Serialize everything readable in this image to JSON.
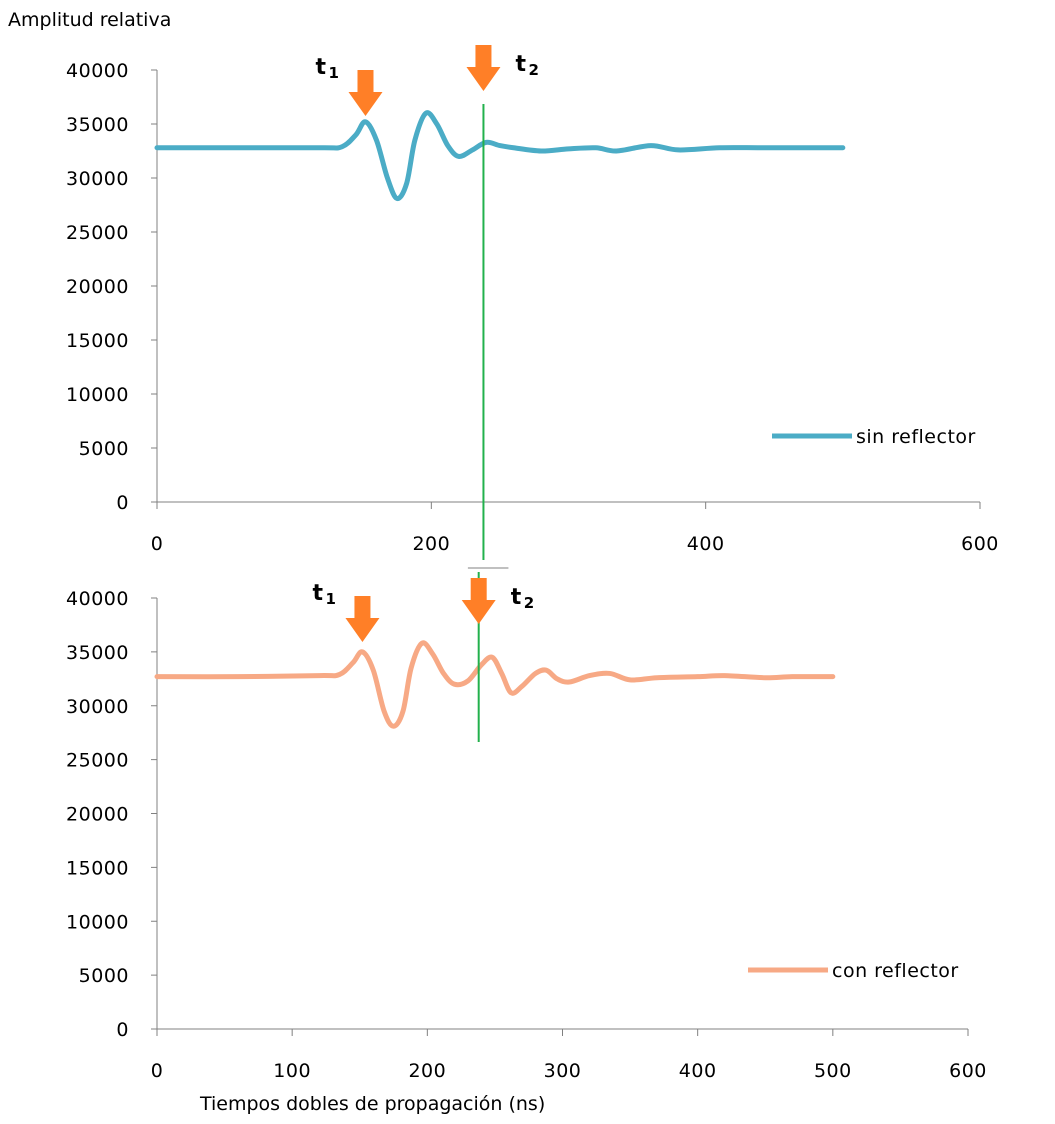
{
  "ylabel_top": "Amplitud relativa",
  "xlabel_bottom": "Tiempos dobles de propagación (ns)",
  "colors": {
    "series_top": "#4BACC6",
    "series_bottom": "#F7A985",
    "marker_line": "#22B14C",
    "arrow": "#FF7F27",
    "axis": "#808080",
    "text": "#000000"
  },
  "chart_data": [
    {
      "type": "line",
      "xlim": [
        0,
        600
      ],
      "ylim": [
        0,
        40000
      ],
      "x_ticks": [
        "0",
        "200",
        "400",
        "600"
      ],
      "y_ticks": [
        "0",
        "5000",
        "10000",
        "15000",
        "20000",
        "25000",
        "30000",
        "35000",
        "40000"
      ],
      "grid": false,
      "legend_position": "right",
      "series": [
        {
          "name": "sin reflector",
          "color": "#4BACC6",
          "points": [
            [
              0,
              32800
            ],
            [
              60,
              32800
            ],
            [
              120,
              32800
            ],
            [
              135,
              32900
            ],
            [
              145,
              34000
            ],
            [
              152,
              35200
            ],
            [
              160,
              33500
            ],
            [
              168,
              30000
            ],
            [
              175,
              28100
            ],
            [
              182,
              29500
            ],
            [
              188,
              33500
            ],
            [
              196,
              36000
            ],
            [
              204,
              35000
            ],
            [
              212,
              33000
            ],
            [
              220,
              32000
            ],
            [
              230,
              32600
            ],
            [
              240,
              33300
            ],
            [
              250,
              33000
            ],
            [
              260,
              32800
            ],
            [
              280,
              32500
            ],
            [
              300,
              32700
            ],
            [
              320,
              32800
            ],
            [
              335,
              32500
            ],
            [
              360,
              33000
            ],
            [
              380,
              32600
            ],
            [
              410,
              32800
            ],
            [
              440,
              32800
            ],
            [
              470,
              32800
            ],
            [
              500,
              32800
            ]
          ]
        }
      ],
      "annotations": [
        {
          "label": "t",
          "sub": "1",
          "x": 152
        },
        {
          "label": "t",
          "sub": "2",
          "x": 238
        }
      ],
      "vline_x": 238
    },
    {
      "type": "line",
      "xlim": [
        0,
        600
      ],
      "ylim": [
        0,
        40000
      ],
      "x_ticks": [
        "0",
        "100",
        "200",
        "300",
        "400",
        "500",
        "600"
      ],
      "y_ticks": [
        "0",
        "5000",
        "10000",
        "15000",
        "20000",
        "25000",
        "30000",
        "35000",
        "40000"
      ],
      "grid": false,
      "legend_position": "right",
      "series": [
        {
          "name": "con reflector",
          "color": "#F7A985",
          "points": [
            [
              0,
              32700
            ],
            [
              60,
              32700
            ],
            [
              120,
              32800
            ],
            [
              135,
              32900
            ],
            [
              145,
              34000
            ],
            [
              152,
              35000
            ],
            [
              160,
              33300
            ],
            [
              168,
              29500
            ],
            [
              175,
              28100
            ],
            [
              182,
              29500
            ],
            [
              188,
              33500
            ],
            [
              196,
              35800
            ],
            [
              204,
              34800
            ],
            [
              212,
              33000
            ],
            [
              220,
              32000
            ],
            [
              230,
              32300
            ],
            [
              240,
              33800
            ],
            [
              248,
              34500
            ],
            [
              255,
              33000
            ],
            [
              262,
              31200
            ],
            [
              270,
              31800
            ],
            [
              280,
              33000
            ],
            [
              288,
              33300
            ],
            [
              296,
              32500
            ],
            [
              305,
              32200
            ],
            [
              320,
              32800
            ],
            [
              335,
              33000
            ],
            [
              350,
              32400
            ],
            [
              370,
              32600
            ],
            [
              400,
              32700
            ],
            [
              420,
              32800
            ],
            [
              450,
              32600
            ],
            [
              470,
              32700
            ],
            [
              500,
              32700
            ]
          ]
        }
      ],
      "annotations": [
        {
          "label": "t",
          "sub": "1",
          "x": 152
        },
        {
          "label": "t",
          "sub": "2",
          "x": 238
        }
      ],
      "vline_x": 238
    }
  ]
}
